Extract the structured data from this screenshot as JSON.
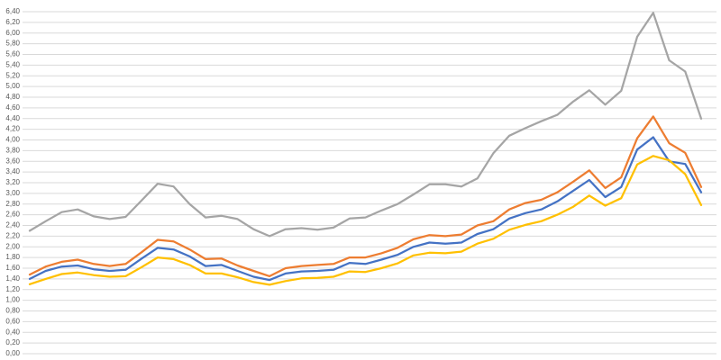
{
  "chart_data": {
    "type": "line",
    "categories": [
      null,
      null,
      null,
      null,
      null,
      null,
      null,
      null,
      null,
      null,
      null,
      null,
      null,
      null,
      null,
      null,
      null,
      null,
      null,
      null,
      null,
      null,
      null,
      null,
      null,
      null,
      null,
      null,
      null,
      null,
      null,
      null,
      null,
      null,
      null,
      null,
      null,
      null,
      null,
      null,
      null,
      null,
      null
    ],
    "series": [
      {
        "color": "#a5a5a5",
        "values": [
          2.3,
          2.48,
          2.65,
          2.7,
          2.57,
          2.52,
          2.56,
          2.87,
          3.18,
          3.13,
          2.8,
          2.55,
          2.58,
          2.52,
          2.33,
          2.2,
          2.33,
          2.35,
          2.32,
          2.36,
          2.53,
          2.55,
          2.68,
          2.8,
          2.98,
          3.17,
          3.17,
          3.13,
          3.28,
          3.75,
          4.08,
          4.22,
          4.35,
          4.47,
          4.72,
          4.93,
          4.66,
          4.92,
          5.93,
          6.38,
          5.49,
          5.28,
          4.4
        ]
      },
      {
        "color": "#ed7d31",
        "values": [
          1.48,
          1.63,
          1.72,
          1.76,
          1.68,
          1.64,
          1.68,
          1.9,
          2.13,
          2.1,
          1.95,
          1.77,
          1.78,
          1.65,
          1.55,
          1.45,
          1.6,
          1.64,
          1.66,
          1.68,
          1.8,
          1.8,
          1.88,
          1.98,
          2.14,
          2.22,
          2.2,
          2.23,
          2.4,
          2.48,
          2.7,
          2.82,
          2.88,
          3.02,
          3.22,
          3.43,
          3.1,
          3.3,
          4.03,
          4.44,
          3.94,
          3.76,
          3.12
        ]
      },
      {
        "color": "#4472c4",
        "values": [
          1.4,
          1.55,
          1.63,
          1.65,
          1.58,
          1.55,
          1.57,
          1.78,
          1.98,
          1.95,
          1.82,
          1.64,
          1.66,
          1.55,
          1.44,
          1.38,
          1.5,
          1.54,
          1.55,
          1.57,
          1.7,
          1.68,
          1.76,
          1.85,
          2.0,
          2.08,
          2.06,
          2.08,
          2.24,
          2.33,
          2.53,
          2.63,
          2.7,
          2.85,
          3.05,
          3.25,
          2.93,
          3.12,
          3.82,
          4.05,
          3.6,
          3.55,
          3.02
        ]
      },
      {
        "color": "#ffc000",
        "values": [
          1.3,
          1.4,
          1.49,
          1.52,
          1.47,
          1.44,
          1.45,
          1.62,
          1.8,
          1.77,
          1.66,
          1.5,
          1.5,
          1.43,
          1.34,
          1.29,
          1.36,
          1.41,
          1.42,
          1.44,
          1.54,
          1.53,
          1.6,
          1.69,
          1.84,
          1.89,
          1.88,
          1.91,
          2.06,
          2.15,
          2.32,
          2.41,
          2.48,
          2.6,
          2.75,
          2.96,
          2.77,
          2.91,
          3.54,
          3.7,
          3.62,
          3.36,
          2.78
        ]
      }
    ],
    "ylim": [
      0,
      6.4
    ],
    "yticks": [
      {
        "value": 0,
        "label": "0,00"
      },
      {
        "value": 0.2,
        "label": "0,20"
      },
      {
        "value": 0.4,
        "label": "0,40"
      },
      {
        "value": 0.6,
        "label": "0,60"
      },
      {
        "value": 0.8,
        "label": "0,80"
      },
      {
        "value": 1,
        "label": "1,00"
      },
      {
        "value": 1.2,
        "label": "1,20"
      },
      {
        "value": 1.4,
        "label": "1,40"
      },
      {
        "value": 1.6,
        "label": "1,60"
      },
      {
        "value": 1.8,
        "label": "1,80"
      },
      {
        "value": 2,
        "label": "2,00"
      },
      {
        "value": 2.2,
        "label": "2,20"
      },
      {
        "value": 2.4,
        "label": "2,40"
      },
      {
        "value": 2.6,
        "label": "2,60"
      },
      {
        "value": 2.8,
        "label": "2,80"
      },
      {
        "value": 3,
        "label": "3,00"
      },
      {
        "value": 3.2,
        "label": "3,20"
      },
      {
        "value": 3.4,
        "label": "3,40"
      },
      {
        "value": 3.6,
        "label": "3,60"
      },
      {
        "value": 3.8,
        "label": "3,80"
      },
      {
        "value": 4,
        "label": "4,00"
      },
      {
        "value": 4.2,
        "label": "4,20"
      },
      {
        "value": 4.4,
        "label": "4,40"
      },
      {
        "value": 4.6,
        "label": "4,60"
      },
      {
        "value": 4.8,
        "label": "4,80"
      },
      {
        "value": 5,
        "label": "5,00"
      },
      {
        "value": 5.2,
        "label": "5,20"
      },
      {
        "value": 5.4,
        "label": "5,40"
      },
      {
        "value": 5.6,
        "label": "5,60"
      },
      {
        "value": 5.8,
        "label": "5,80"
      },
      {
        "value": 6,
        "label": "6,00"
      },
      {
        "value": 6.2,
        "label": "6,20"
      },
      {
        "value": 6.4,
        "label": "6,40"
      }
    ],
    "grid": true
  }
}
